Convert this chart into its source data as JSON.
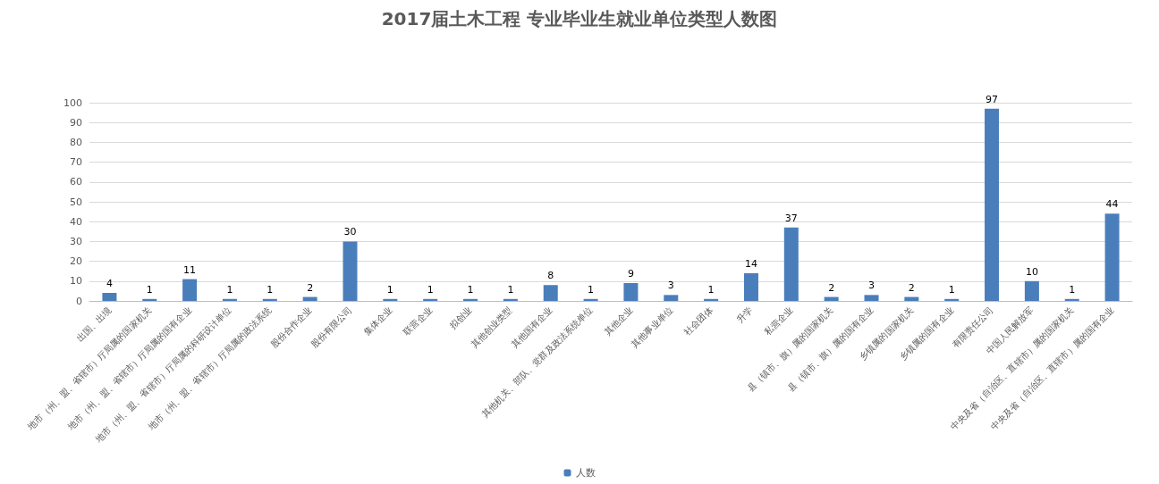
{
  "chart_data": {
    "type": "bar",
    "title": "2017届土木工程 专业毕业生就业单位类型人数图",
    "categories": [
      "出国、出境",
      "地市（州、盟、省辖市）厅局属的国家机关",
      "地市（州、盟、省辖市）厅局属的国有企业",
      "地市（州、盟、省辖市）厅局属的科研设计单位",
      "地市（州、盟、省辖市）厅局属的政法系统",
      "股份合作企业",
      "股份有限公司",
      "集体企业",
      "联营企业",
      "拟创业",
      "其他创业类型",
      "其他国有企业",
      "其他机关、部队、党群及政法系统单位",
      "其他企业",
      "其他事业单位",
      "社会团体",
      "升学",
      "私营企业",
      "县（镇市、旗）属的国家机关",
      "县（镇市、旗）属的国有企业",
      "乡镇属的国家机关",
      "乡镇属的国有企业",
      "有限责任公司",
      "中国人民解放军",
      "中央及省（自治区、直辖市）属的国家机关",
      "中央及省（自治区、直辖市）属的国有企业"
    ],
    "series": [
      {
        "name": "人数",
        "color": "#4a7ebb",
        "values": [
          4,
          1,
          11,
          1,
          1,
          2,
          30,
          1,
          1,
          1,
          1,
          8,
          1,
          9,
          3,
          1,
          14,
          37,
          2,
          3,
          2,
          1,
          97,
          10,
          1,
          44
        ]
      }
    ],
    "ylim": [
      0,
      100
    ],
    "yticks": [
      0,
      10,
      20,
      30,
      40,
      50,
      60,
      70,
      80,
      90,
      100
    ],
    "grid": "y",
    "legend": "bottom",
    "data_labels": true
  }
}
